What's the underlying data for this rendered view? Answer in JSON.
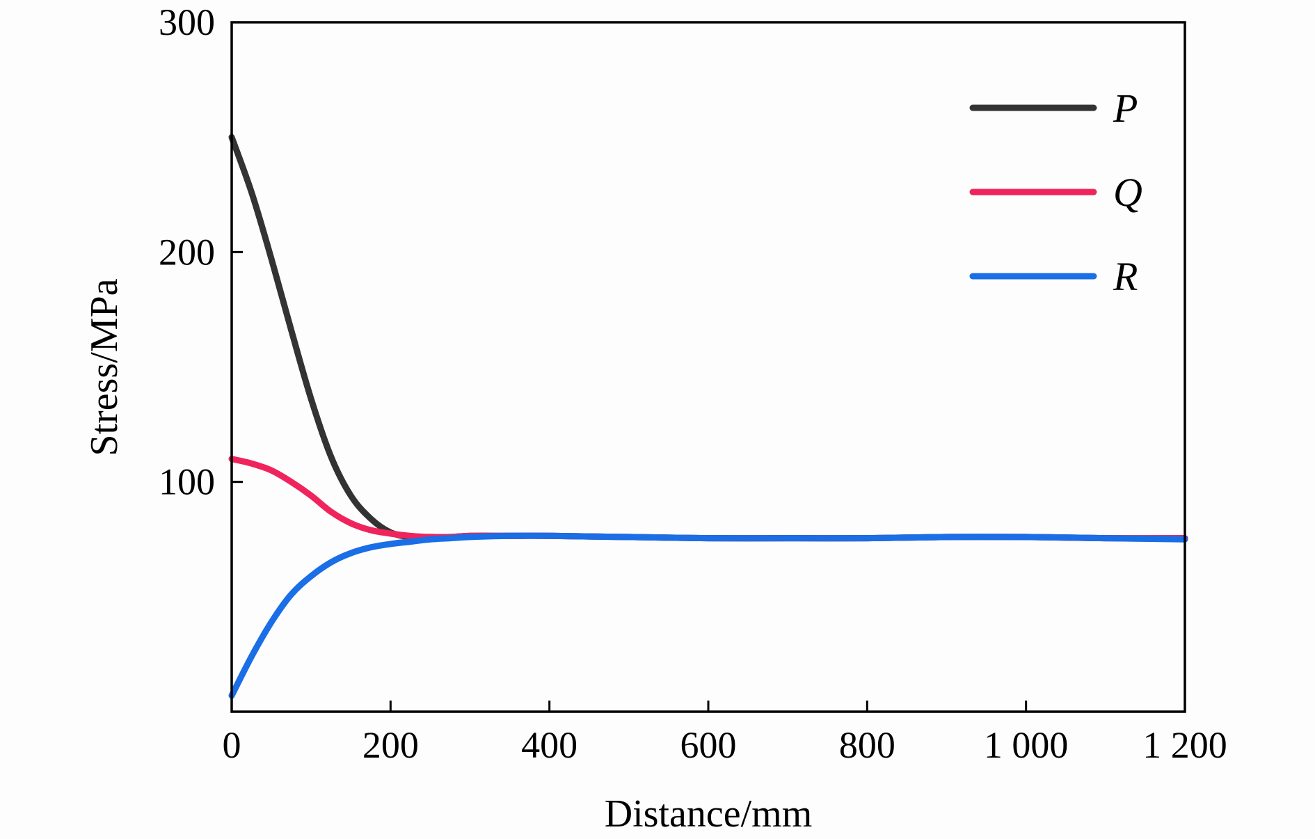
{
  "chart_data": {
    "type": "line",
    "title": "",
    "xlabel": "Distance/mm",
    "ylabel": "Stress/MPa",
    "xlim": [
      0,
      1200
    ],
    "ylim": [
      0,
      300
    ],
    "xticks": [
      0,
      200,
      400,
      600,
      800,
      1000,
      1200
    ],
    "xtick_labels": [
      "0",
      "200",
      "400",
      "600",
      "800",
      "1 000",
      "1 200"
    ],
    "yticks": [
      100,
      200,
      300
    ],
    "ytick_labels": [
      "100",
      "200",
      "300"
    ],
    "grid": false,
    "legend_position": "top-right",
    "series": [
      {
        "name": "P",
        "color": "#333333",
        "x": [
          0,
          25,
          50,
          75,
          100,
          125,
          150,
          175,
          200,
          225,
          250,
          275,
          300,
          350,
          400,
          500,
          600,
          700,
          800,
          900,
          1000,
          1100,
          1200
        ],
        "y": [
          250,
          226,
          197,
          166,
          136,
          111,
          94,
          84,
          78,
          76,
          76,
          76,
          76.5,
          76.5,
          76.5,
          76,
          75.5,
          75.5,
          75.5,
          76,
          76,
          75.5,
          75.5
        ]
      },
      {
        "name": "Q",
        "color": "#f0245c",
        "x": [
          0,
          25,
          50,
          75,
          100,
          125,
          150,
          175,
          200,
          225,
          250,
          275,
          300,
          350,
          400,
          500,
          600,
          700,
          800,
          900,
          1000,
          1100,
          1200
        ],
        "y": [
          110,
          108,
          105,
          100,
          94,
          87,
          82,
          79,
          77.5,
          76.5,
          76,
          76,
          76.5,
          76.5,
          76.5,
          76,
          75.5,
          75.5,
          75.5,
          76,
          76,
          75.5,
          75.5
        ]
      },
      {
        "name": "R",
        "color": "#1a6ee6",
        "x": [
          0,
          25,
          50,
          75,
          100,
          125,
          150,
          175,
          200,
          225,
          250,
          275,
          300,
          350,
          400,
          500,
          600,
          700,
          800,
          900,
          1000,
          1100,
          1200
        ],
        "y": [
          7,
          24,
          39,
          51,
          59,
          65,
          69,
          71.5,
          73,
          74,
          75,
          75.5,
          76,
          76.5,
          76.5,
          76,
          75.5,
          75.5,
          75.5,
          76,
          76,
          75.5,
          75
        ]
      }
    ]
  }
}
